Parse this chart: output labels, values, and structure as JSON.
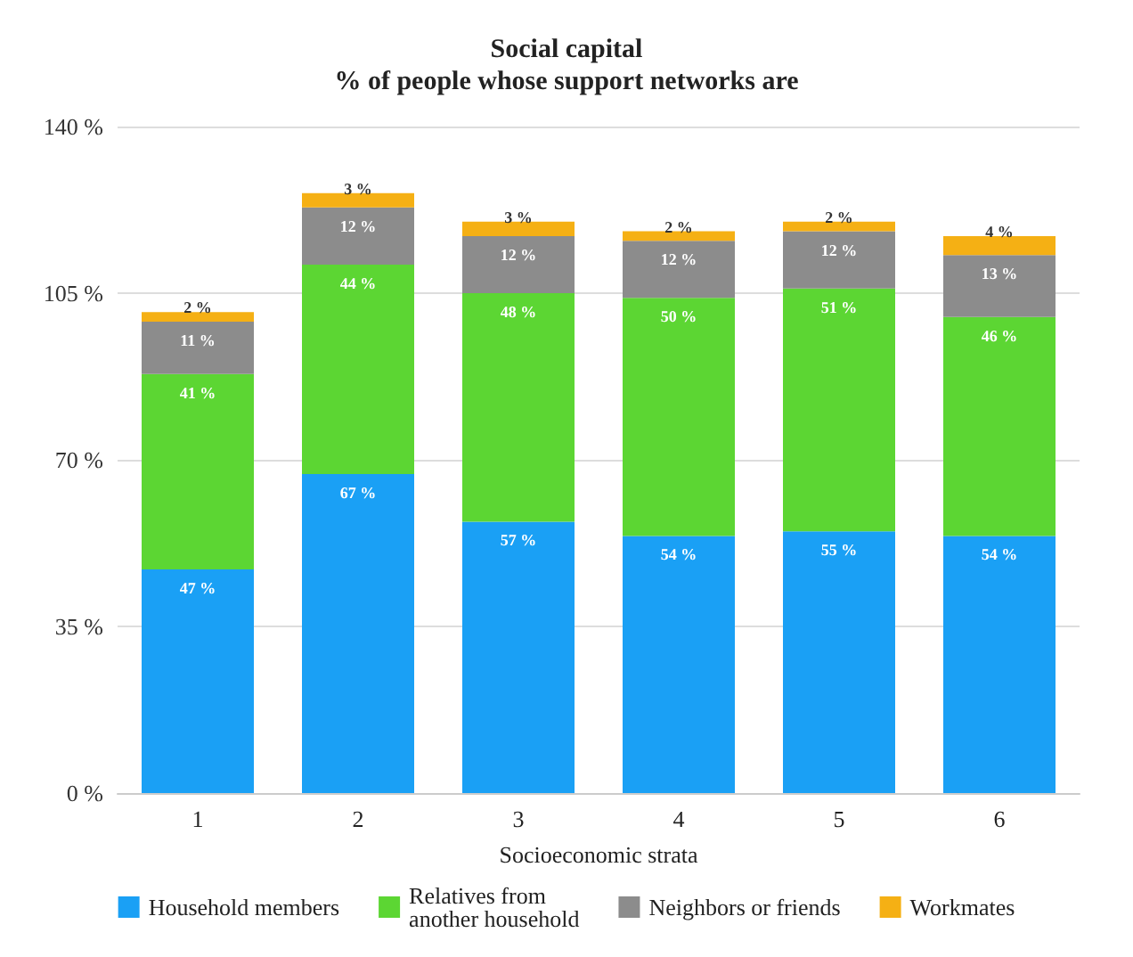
{
  "chart_data": {
    "type": "bar",
    "stacked": true,
    "title": "Social capital\n% of people whose support networks are",
    "xlabel": "Socioeconomic strata",
    "categories": [
      "1",
      "2",
      "3",
      "4",
      "5",
      "6"
    ],
    "series": [
      {
        "name": "Household members",
        "color": "#1aa0f5",
        "values": [
          47,
          67,
          57,
          54,
          55,
          54
        ],
        "value_labels": [
          "47 %",
          "67 %",
          "57 %",
          "54 %",
          "55 %",
          "54 %"
        ]
      },
      {
        "name": "Relatives from\nanother household",
        "color": "#5cd633",
        "values": [
          41,
          44,
          48,
          50,
          51,
          46
        ],
        "value_labels": [
          "41 %",
          "44 %",
          "48 %",
          "50 %",
          "51 %",
          "46 %"
        ]
      },
      {
        "name": "Neighbors or friends",
        "color": "#8c8c8c",
        "values": [
          11,
          12,
          12,
          12,
          12,
          13
        ],
        "value_labels": [
          "11 %",
          "12 %",
          "12 %",
          "12 %",
          "12 %",
          "13 %"
        ]
      },
      {
        "name": "Workmates",
        "color": "#f5b014",
        "values": [
          2,
          3,
          3,
          2,
          2,
          4
        ],
        "value_labels": [
          "2 %",
          "3 %",
          "3 %",
          "2 %",
          "2 %",
          "4 %"
        ]
      }
    ],
    "ylim": [
      0,
      140
    ],
    "yticks": [
      {
        "value": 0,
        "label": "0 %"
      },
      {
        "value": 35,
        "label": "35 %"
      },
      {
        "value": 70,
        "label": "70 %"
      },
      {
        "value": 105,
        "label": "105 %"
      },
      {
        "value": 140,
        "label": "140 %"
      }
    ],
    "grid": "y",
    "legend": "bottom"
  }
}
